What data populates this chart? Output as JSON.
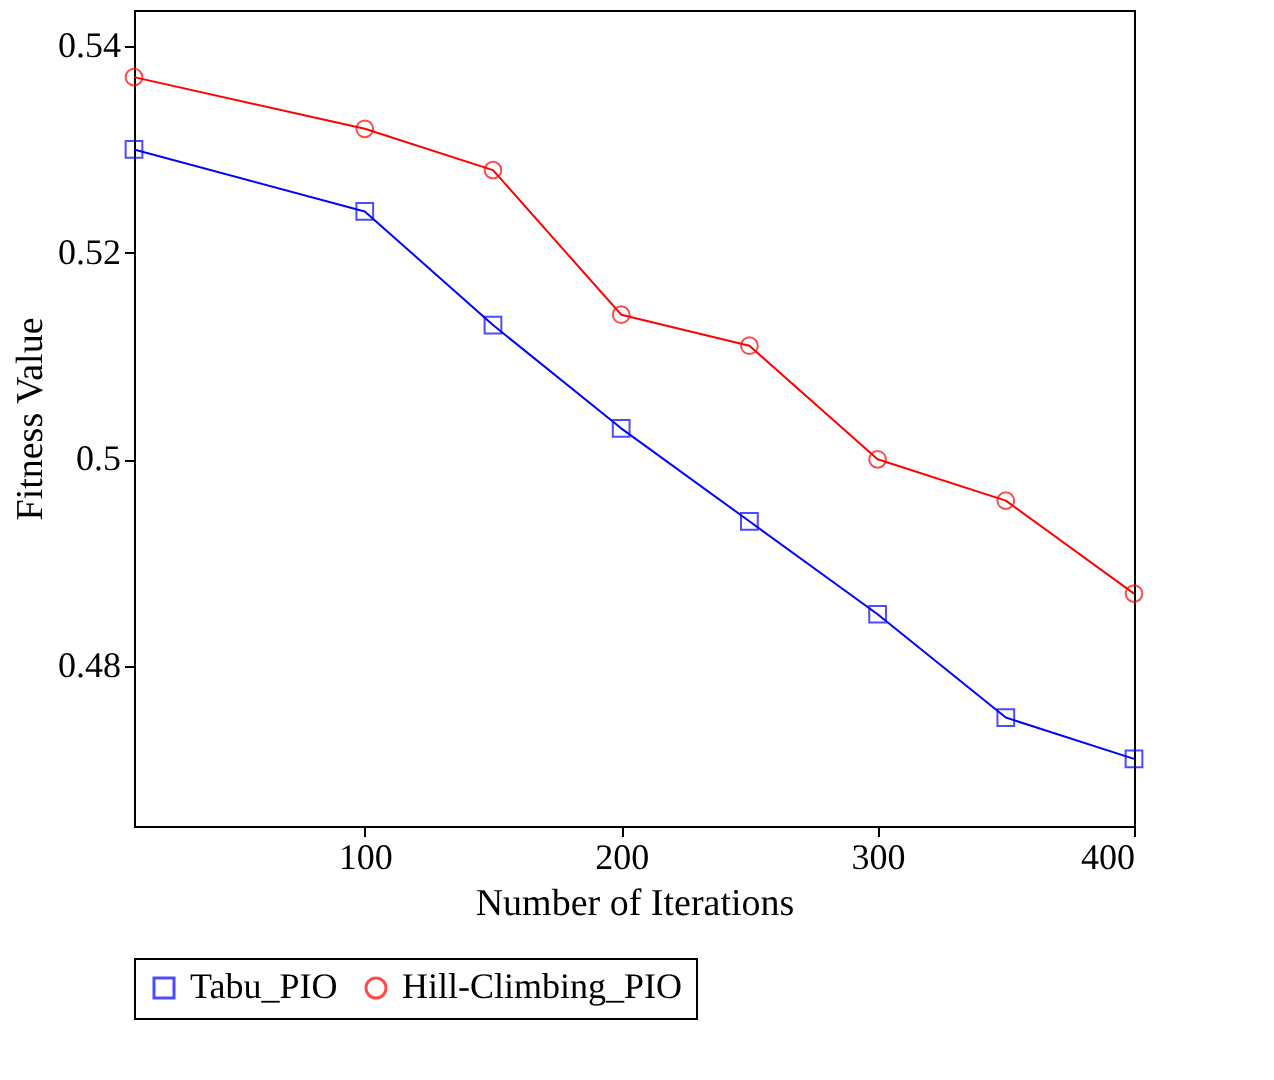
{
  "chart_data": {
    "type": "line",
    "xlabel": "Number of Iterations",
    "ylabel": "Fitness Value",
    "x": [
      10,
      100,
      150,
      200,
      250,
      300,
      350,
      400
    ],
    "series": [
      {
        "name": "Tabu_PIO",
        "color": "#0000ff",
        "marker": "square",
        "values": [
          0.53,
          0.524,
          0.513,
          0.503,
          0.494,
          0.485,
          0.475,
          0.471
        ]
      },
      {
        "name": "Hill-Climbing_PIO",
        "color": "#ff0000",
        "marker": "circle",
        "values": [
          0.537,
          0.532,
          0.528,
          0.514,
          0.511,
          0.5,
          0.496,
          0.487
        ]
      }
    ],
    "xlim": [
      10,
      400
    ],
    "xticks": [
      100,
      200,
      300,
      400
    ],
    "ylim": [
      0.4645,
      0.5435
    ],
    "yticks": [
      0.48,
      0.5,
      0.52,
      0.54
    ],
    "grid": false,
    "legend": "bottom",
    "line_style": "solid"
  }
}
